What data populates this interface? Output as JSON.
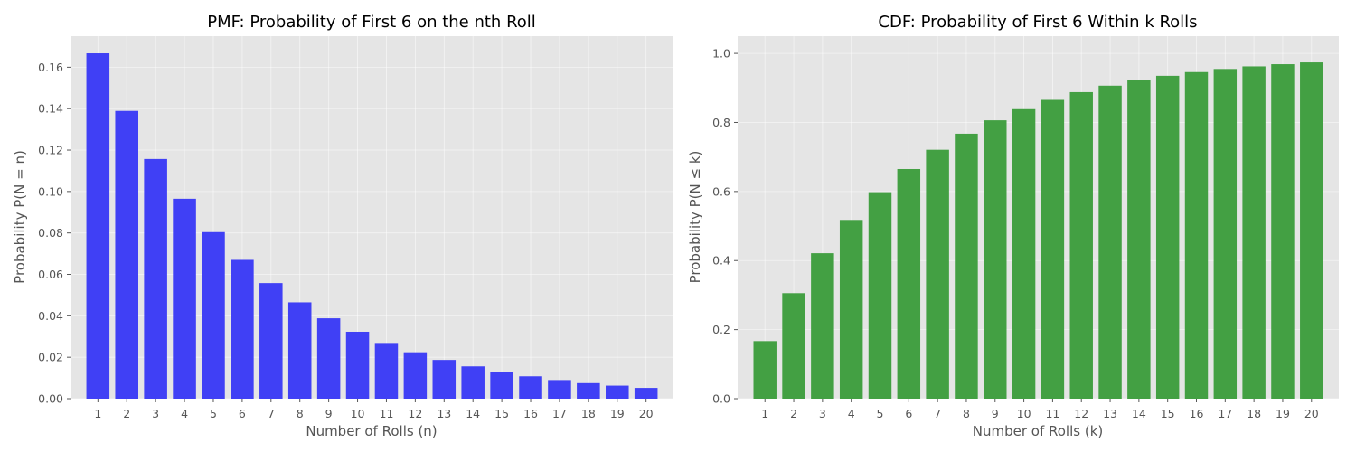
{
  "chart_data": [
    {
      "type": "bar",
      "title": "PMF: Probability of First 6 on the nth Roll",
      "xlabel": "Number of Rolls (n)",
      "ylabel": "Probability P(N = n)",
      "categories": [
        "1",
        "2",
        "3",
        "4",
        "5",
        "6",
        "7",
        "8",
        "9",
        "10",
        "11",
        "12",
        "13",
        "14",
        "15",
        "16",
        "17",
        "18",
        "19",
        "20"
      ],
      "values": [
        0.1667,
        0.1389,
        0.1157,
        0.0965,
        0.0804,
        0.067,
        0.0558,
        0.0465,
        0.0388,
        0.0323,
        0.0269,
        0.0224,
        0.0187,
        0.0156,
        0.013,
        0.0108,
        0.009,
        0.0075,
        0.0063,
        0.0052
      ],
      "ylim": [
        0,
        0.175
      ],
      "yticks": [
        "0.00",
        "0.02",
        "0.04",
        "0.06",
        "0.08",
        "0.10",
        "0.12",
        "0.14",
        "0.16"
      ],
      "bar_color": "#4040f5",
      "grid": true
    },
    {
      "type": "bar",
      "title": "CDF: Probability of First 6 Within k Rolls",
      "xlabel": "Number of Rolls (k)",
      "ylabel": "Probability P(N ≤ k)",
      "categories": [
        "1",
        "2",
        "3",
        "4",
        "5",
        "6",
        "7",
        "8",
        "9",
        "10",
        "11",
        "12",
        "13",
        "14",
        "15",
        "16",
        "17",
        "18",
        "19",
        "20"
      ],
      "values": [
        0.1667,
        0.3056,
        0.4213,
        0.5177,
        0.5981,
        0.6651,
        0.7209,
        0.7674,
        0.8062,
        0.8385,
        0.8654,
        0.8878,
        0.9065,
        0.9221,
        0.9351,
        0.9459,
        0.9549,
        0.9624,
        0.9687,
        0.9739
      ],
      "ylim": [
        0,
        1.05
      ],
      "yticks": [
        "0.0",
        "0.2",
        "0.4",
        "0.6",
        "0.8",
        "1.0"
      ],
      "bar_color": "#43a043",
      "grid": true
    }
  ]
}
